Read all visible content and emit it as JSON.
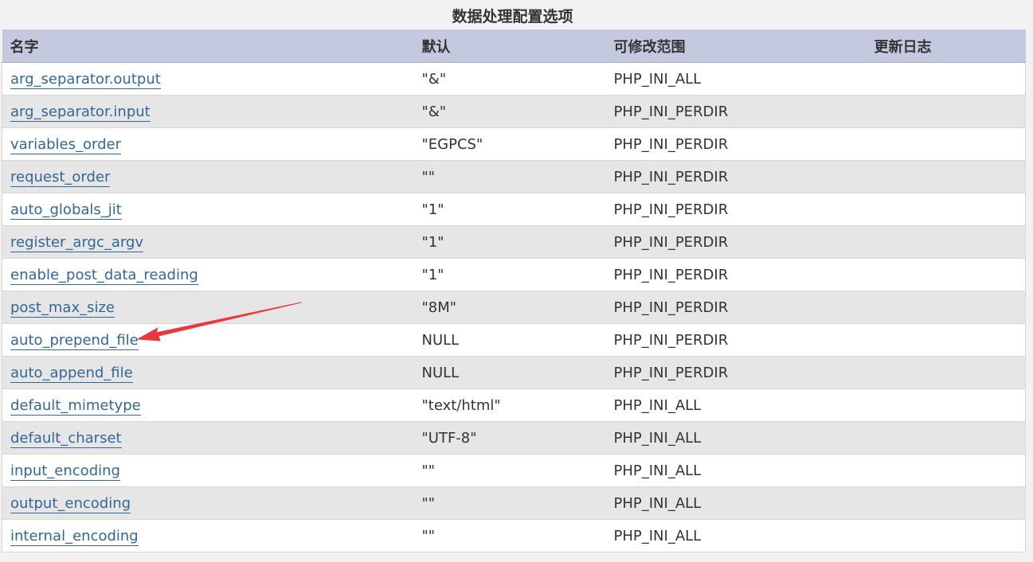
{
  "table": {
    "caption": "数据处理配置选项",
    "headers": {
      "name": "名字",
      "default": "默认",
      "changeable": "可修改范围",
      "changelog": "更新日志"
    },
    "rows": [
      {
        "name": "arg_separator.output",
        "default": "\"&\"",
        "changeable": "PHP_INI_ALL",
        "changelog": ""
      },
      {
        "name": "arg_separator.input",
        "default": "\"&\"",
        "changeable": "PHP_INI_PERDIR",
        "changelog": ""
      },
      {
        "name": "variables_order",
        "default": "\"EGPCS\"",
        "changeable": "PHP_INI_PERDIR",
        "changelog": ""
      },
      {
        "name": "request_order",
        "default": "\"\"",
        "changeable": "PHP_INI_PERDIR",
        "changelog": ""
      },
      {
        "name": "auto_globals_jit",
        "default": "\"1\"",
        "changeable": "PHP_INI_PERDIR",
        "changelog": ""
      },
      {
        "name": "register_argc_argv",
        "default": "\"1\"",
        "changeable": "PHP_INI_PERDIR",
        "changelog": ""
      },
      {
        "name": "enable_post_data_reading",
        "default": "\"1\"",
        "changeable": "PHP_INI_PERDIR",
        "changelog": ""
      },
      {
        "name": "post_max_size",
        "default": "\"8M\"",
        "changeable": "PHP_INI_PERDIR",
        "changelog": ""
      },
      {
        "name": "auto_prepend_file",
        "default": "NULL",
        "changeable": "PHP_INI_PERDIR",
        "changelog": ""
      },
      {
        "name": "auto_append_file",
        "default": "NULL",
        "changeable": "PHP_INI_PERDIR",
        "changelog": ""
      },
      {
        "name": "default_mimetype",
        "default": "\"text/html\"",
        "changeable": "PHP_INI_ALL",
        "changelog": ""
      },
      {
        "name": "default_charset",
        "default": "\"UTF-8\"",
        "changeable": "PHP_INI_ALL",
        "changelog": ""
      },
      {
        "name": "input_encoding",
        "default": "\"\"",
        "changeable": "PHP_INI_ALL",
        "changelog": ""
      },
      {
        "name": "output_encoding",
        "default": "\"\"",
        "changeable": "PHP_INI_ALL",
        "changelog": ""
      },
      {
        "name": "internal_encoding",
        "default": "\"\"",
        "changeable": "PHP_INI_ALL",
        "changelog": ""
      }
    ]
  },
  "colors": {
    "header_bg": "#c4c9df",
    "link": "#336699",
    "row_alt_bg": "#e6e6e6",
    "annotation_arrow": "#e8383d"
  },
  "annotation": {
    "icon": "red-arrow-icon",
    "points_to_row": "auto_prepend_file"
  }
}
